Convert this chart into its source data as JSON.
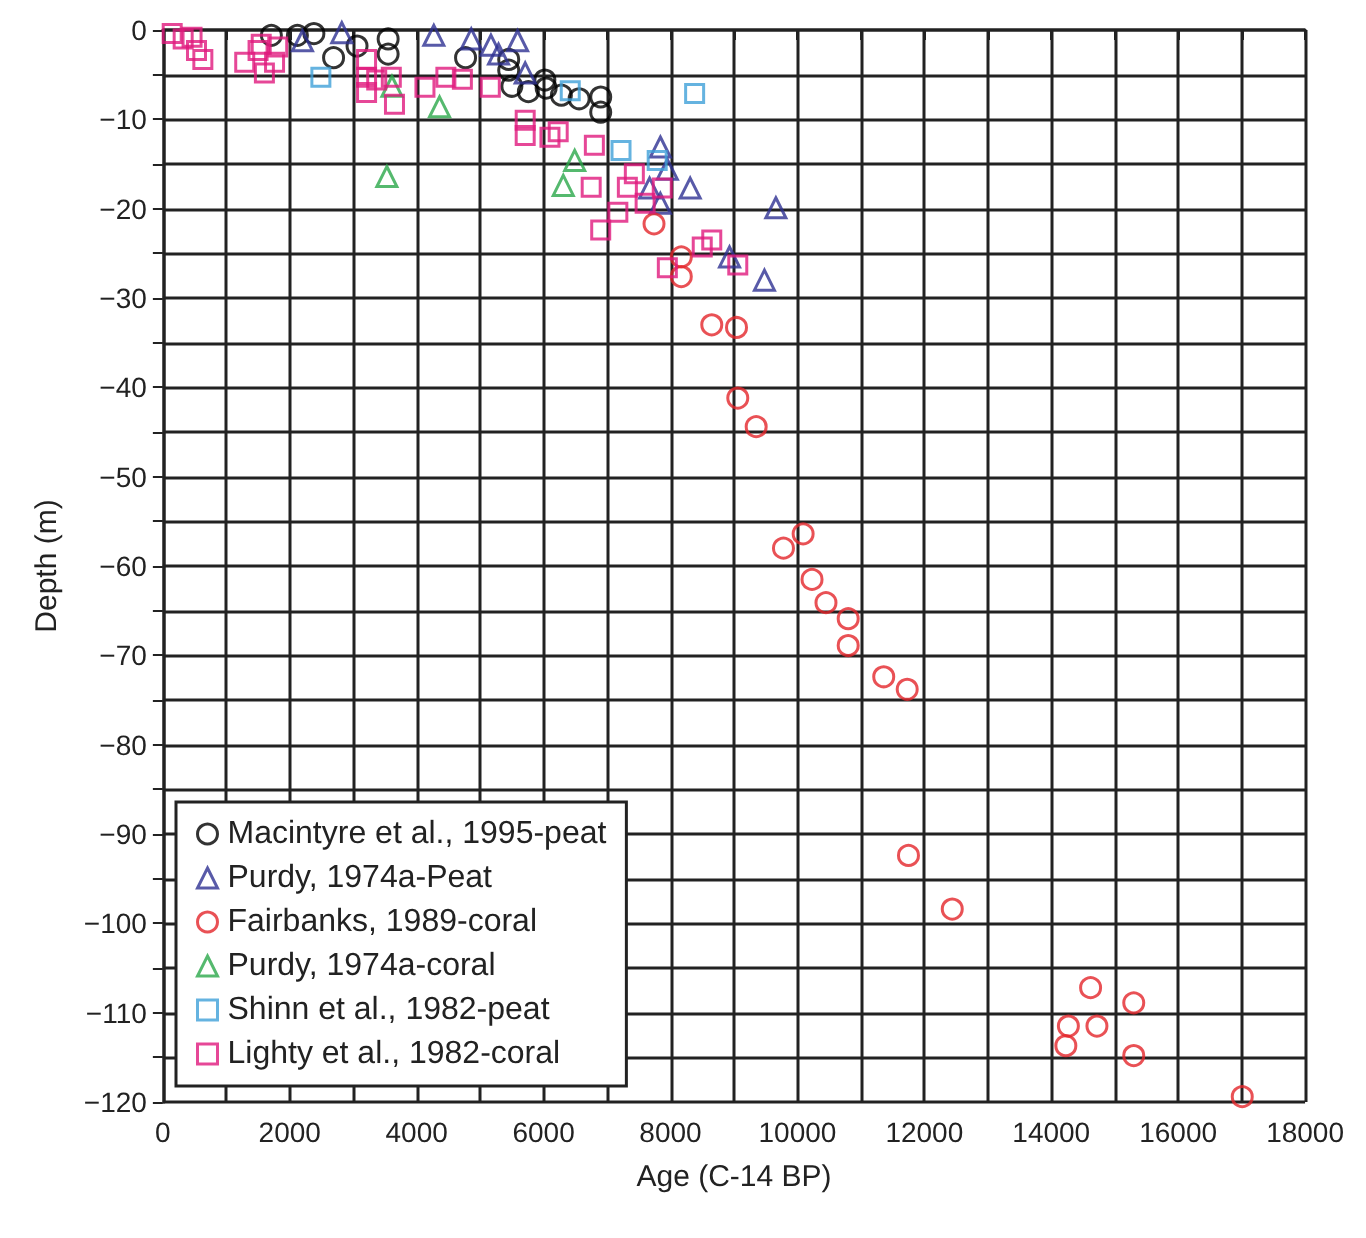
{
  "chart_data": {
    "type": "scatter",
    "xlabel": "Age (C-14 BP)",
    "ylabel": "Depth (m)",
    "xlim": [
      0,
      18000
    ],
    "ylim": [
      -120,
      0
    ],
    "xticks": [
      0,
      {
        "value": 1000,
        "label": null
      },
      2000,
      {
        "value": 3000,
        "label": null
      },
      4000,
      {
        "value": 5000,
        "label": null
      },
      6000,
      {
        "value": 7000,
        "label": null
      },
      8000,
      {
        "value": 9000,
        "label": null
      },
      10000,
      {
        "value": 11000,
        "label": null
      },
      12000,
      {
        "value": 13000,
        "label": null
      },
      14000,
      {
        "value": 15000,
        "label": null
      },
      16000,
      {
        "value": 17000,
        "label": null
      },
      18000
    ],
    "yticks": [
      {
        "value": -120,
        "label": "−120"
      },
      {
        "value": -115,
        "label": null
      },
      {
        "value": -110,
        "label": "−110"
      },
      {
        "value": -105,
        "label": null
      },
      {
        "value": -100,
        "label": "−100"
      },
      {
        "value": -95,
        "label": null
      },
      {
        "value": -90,
        "label": "−90"
      },
      {
        "value": -85,
        "label": null
      },
      {
        "value": -80,
        "label": "−80"
      },
      {
        "value": -75,
        "label": null
      },
      {
        "value": -70,
        "label": "−70"
      },
      {
        "value": -65,
        "label": null
      },
      {
        "value": -60,
        "label": "−60"
      },
      {
        "value": -55,
        "label": null
      },
      {
        "value": -50,
        "label": "−50"
      },
      {
        "value": -45,
        "label": null
      },
      {
        "value": -40,
        "label": "−40"
      },
      {
        "value": -35,
        "label": null
      },
      {
        "value": -30,
        "label": "−30"
      },
      {
        "value": -25,
        "label": null
      },
      {
        "value": -20,
        "label": "−20"
      },
      {
        "value": -15,
        "label": null
      },
      {
        "value": -10,
        "label": "−10"
      },
      {
        "value": -5,
        "label": null
      },
      0
    ],
    "grid": true,
    "legend": "bottom left",
    "series": [
      {
        "name": "Macintyre et al., 1995-peat",
        "color": "#000000",
        "marker": "circle",
        "x": [
          1710,
          2120,
          2380,
          2690,
          3060,
          3550,
          3550,
          4770,
          5450,
          5450,
          5500,
          5760,
          6020,
          6040,
          6280,
          6560,
          6900,
          6900
        ],
        "values": [
          -0.6,
          -0.6,
          -0.4,
          -3.1,
          -1.8,
          -1.0,
          -2.7,
          -3.1,
          -3.3,
          -4.5,
          -6.3,
          -6.9,
          -5.6,
          -6.5,
          -7.3,
          -7.7,
          -7.5,
          -9.2
        ]
      },
      {
        "name": "Purdy, 1974a-Peat",
        "color": "#2e3192",
        "marker": "triangle",
        "x": [
          2200,
          2820,
          4270,
          4860,
          5170,
          5590,
          5290,
          5710,
          7840,
          7950,
          7670,
          8310,
          7840,
          9660,
          8930,
          9480
        ],
        "values": [
          -1.2,
          -0.3,
          -0.6,
          -1.0,
          -1.7,
          -1.2,
          -2.7,
          -4.8,
          -13.1,
          -15.6,
          -17.7,
          -17.7,
          -19.4,
          -19.9,
          -25.4,
          -28.0
        ]
      },
      {
        "name": "Fairbanks, 1989-coral",
        "color": "#e3262a",
        "marker": "circle",
        "x": [
          7740,
          8170,
          8170,
          8650,
          9040,
          9060,
          9350,
          9780,
          10090,
          10230,
          10450,
          10800,
          10800,
          11360,
          11730,
          11750,
          12440,
          14620,
          15300,
          14270,
          14720,
          14230,
          15300,
          17010
        ],
        "values": [
          -21.7,
          -25.4,
          -27.6,
          -33.0,
          -33.3,
          -41.2,
          -44.4,
          -58.0,
          -56.4,
          -61.5,
          -64.1,
          -65.9,
          -68.9,
          -72.4,
          -73.8,
          -92.4,
          -98.4,
          -107.2,
          -108.9,
          -111.5,
          -111.5,
          -113.7,
          -114.8,
          -119.4
        ]
      },
      {
        "name": "Purdy, 1974a-coral",
        "color": "#2ba84a",
        "marker": "triangle",
        "x": [
          3610,
          4360,
          3530,
          6490,
          6310
        ],
        "values": [
          -6.3,
          -8.6,
          -16.4,
          -14.6,
          -17.4
        ]
      },
      {
        "name": "Shinn et al., 1982-peat",
        "color": "#3fa0d8",
        "marker": "square",
        "x": [
          2490,
          6420,
          8380,
          7220,
          7790
        ],
        "values": [
          -5.3,
          -6.8,
          -7.1,
          -13.5,
          -14.6
        ]
      },
      {
        "name": "Lighty et al., 1982-coral",
        "color": "#e0197d",
        "marker": "square",
        "x": [
          147,
          320,
          460,
          530,
          630,
          1550,
          1500,
          1810,
          1290,
          1760,
          1600,
          3210,
          3210,
          3370,
          3600,
          3210,
          3650,
          4130,
          4460,
          4720,
          5160,
          5710,
          5710,
          6230,
          6100,
          6800,
          6750,
          7430,
          7320,
          7870,
          7600,
          7170,
          6900,
          8650,
          8500,
          9060,
          7950
        ],
        "values": [
          -0.4,
          -1.0,
          -0.8,
          -2.3,
          -3.3,
          -1.6,
          -2.3,
          -1.9,
          -3.6,
          -3.6,
          -4.8,
          -3.3,
          -5.3,
          -5.6,
          -5.3,
          -7.0,
          -8.3,
          -6.4,
          -5.3,
          -5.5,
          -6.4,
          -10.1,
          -11.8,
          -11.4,
          -12.0,
          -12.9,
          -17.6,
          -16.1,
          -17.6,
          -17.7,
          -19.4,
          -20.4,
          -22.4,
          -23.5,
          -24.3,
          -26.3,
          -26.6
        ]
      }
    ]
  }
}
